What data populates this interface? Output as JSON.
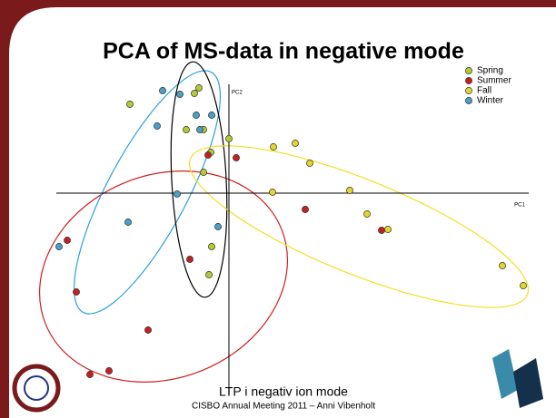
{
  "chart_data": {
    "type": "scatter",
    "title": "PCA of MS-data in negative mode",
    "x_label": "PC1",
    "y_label": "PC2",
    "xlim": [
      -19,
      33
    ],
    "ylim": [
      -22,
      12
    ],
    "legend": "upper right",
    "series": [
      {
        "name": "Spring",
        "color": "#b5c930",
        "x": [
          -10.9,
          -3.8,
          -3.3,
          -4.7,
          -2.8,
          -2.0,
          0.0,
          -1.9,
          -2.2,
          -2.8
        ],
        "y": [
          9.8,
          11.0,
          11.6,
          7.0,
          7.0,
          4.5,
          6.0,
          -5.9,
          -9.0,
          2.3
        ]
      },
      {
        "name": "Summer",
        "color": "#c42020",
        "x": [
          -2.3,
          0.8,
          8.4,
          16.8,
          -17.8,
          -4.3,
          -16.8,
          -8.9,
          -13.2,
          -15.3
        ],
        "y": [
          4.2,
          3.9,
          -1.8,
          -4.1,
          -5.2,
          -7.3,
          -10.9,
          -15.1,
          -19.6,
          -20.0
        ]
      },
      {
        "name": "Fall",
        "color": "#e3d52a",
        "x": [
          4.9,
          7.3,
          8.9,
          4.8,
          13.3,
          15.2,
          17.5,
          30.1,
          32.4
        ],
        "y": [
          5.1,
          5.5,
          3.3,
          0.1,
          0.3,
          -2.3,
          -4.0,
          -8.0,
          -10.2
        ]
      },
      {
        "name": "Winter",
        "color": "#4a9fc6",
        "x": [
          -7.3,
          -5.4,
          -3.6,
          -1.9,
          -7.9,
          -3.2,
          -5.7,
          -11.1,
          -1.2,
          -18.7
        ],
        "y": [
          11.3,
          10.9,
          8.6,
          8.6,
          7.4,
          7.0,
          -0.1,
          -3.2,
          -3.7,
          -5.9
        ]
      }
    ]
  },
  "footer": {
    "line1": "LTP i negativ ion mode",
    "line2": "CISBO Annual Meeting 2011 – Anni Vibenholt"
  }
}
